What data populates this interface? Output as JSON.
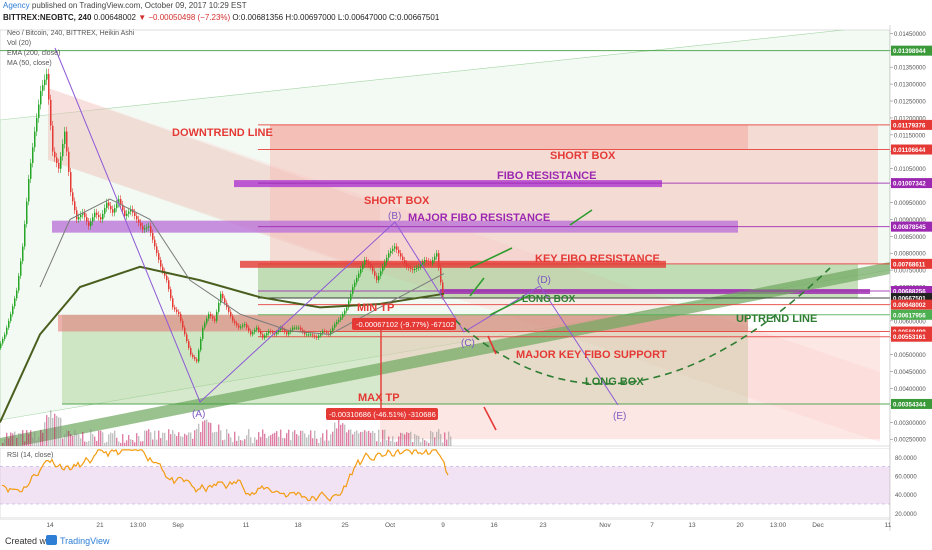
{
  "header": {
    "publisher": "Agency",
    "published_text": "published on TradingView.com, October 09, 2017 10:29 EST",
    "symbol": "BITTREX:NEOBTC, 240",
    "last": "0.00648002",
    "change": "▼ −0.00050498 (−7.23%)",
    "ohlc": "O:0.00681356 H:0.00697000 L:0.00647000 C:0.00667501"
  },
  "legend": {
    "title": "Neo / Bitcoin, 240, BITTREX, Heikin Ashi",
    "vol": "Vol (20)",
    "ema": "EMA (200, close)",
    "ma": "MA (50, close)",
    "rsi": "RSI (14, close)"
  },
  "footer": {
    "created": "Created with",
    "brand": "TradingView"
  },
  "chart_data": {
    "type": "candlestick",
    "price_axis": {
      "ticks": [
        "0.01450000",
        "0.01400000",
        "0.01350000",
        "0.01300000",
        "0.01250000",
        "0.01200000",
        "0.01150000",
        "0.01100000",
        "0.01050000",
        "0.01000000",
        "0.00950000",
        "0.00900000",
        "0.00850000",
        "0.00800000",
        "0.00750000",
        "0.00700000",
        "0.00650000",
        "0.00600000",
        "0.00550000",
        "0.00500000",
        "0.00450000",
        "0.00400000",
        "0.00350000",
        "0.00300000",
        "0.00250000"
      ],
      "range": [
        0.0023,
        0.0146
      ]
    },
    "time_axis": {
      "ticks": [
        "14",
        "21",
        "13:00",
        "Sep",
        "11",
        "18",
        "25",
        "Oct",
        "9",
        "16",
        "23",
        "Nov",
        "7",
        "13",
        "20",
        "13:00",
        "Dec",
        "11"
      ]
    },
    "rsi_axis": {
      "ticks": [
        "80.0000",
        "60.0000",
        "40.0000",
        "20.0000"
      ],
      "range": [
        15,
        90
      ]
    },
    "level_labels": [
      {
        "value": "0.01398944",
        "color": "#3a9a3a"
      },
      {
        "value": "0.01179376",
        "color": "#e53935"
      },
      {
        "value": "0.01106644",
        "color": "#e53935"
      },
      {
        "value": "0.01007342",
        "color": "#9c27b0"
      },
      {
        "value": "0.00878545",
        "color": "#9c27b0"
      },
      {
        "value": "0.00768611",
        "color": "#e53935"
      },
      {
        "value": "0.00688256",
        "color": "#9c27b0"
      },
      {
        "value": "0.00667501",
        "color": "#222222"
      },
      {
        "value": "0.00648002",
        "color": "#e53935"
      },
      {
        "value": "0.00617956",
        "color": "#4caf50"
      },
      {
        "value": "0.00568499",
        "color": "#e53935"
      },
      {
        "value": "0.00553161",
        "color": "#e53935"
      },
      {
        "value": "0.00354344",
        "color": "#3a9a3a"
      }
    ],
    "annotations": [
      "DOWNTREND LINE",
      "SHORT BOX",
      "FIBO RESISTANCE",
      "SHORT BOX",
      "MAJOR FIBO RESISTANCE",
      "KEY FIBO RESISTANCE",
      "LONG BOX",
      "UPTREND LINE",
      "MIN TP",
      "MAJOR KEY FIBO SUPPORT",
      "LONG BOX",
      "MAX TP"
    ],
    "wave_points": [
      "(A)",
      "(B)",
      "(C)",
      "(D)",
      "(E)"
    ],
    "measure_labels": [
      "-0.00067102 (-9.77%) -67102",
      "-0.00310686 (-46.51%) -310686"
    ],
    "series": [
      {
        "name": "Vol (20)",
        "color": "#c2185b"
      },
      {
        "name": "EMA (200, close)",
        "color": "#4a5e1e"
      },
      {
        "name": "MA (50, close)",
        "color": "#7b7b7b"
      },
      {
        "name": "RSI (14, close)",
        "color": "#f39c12"
      }
    ]
  }
}
